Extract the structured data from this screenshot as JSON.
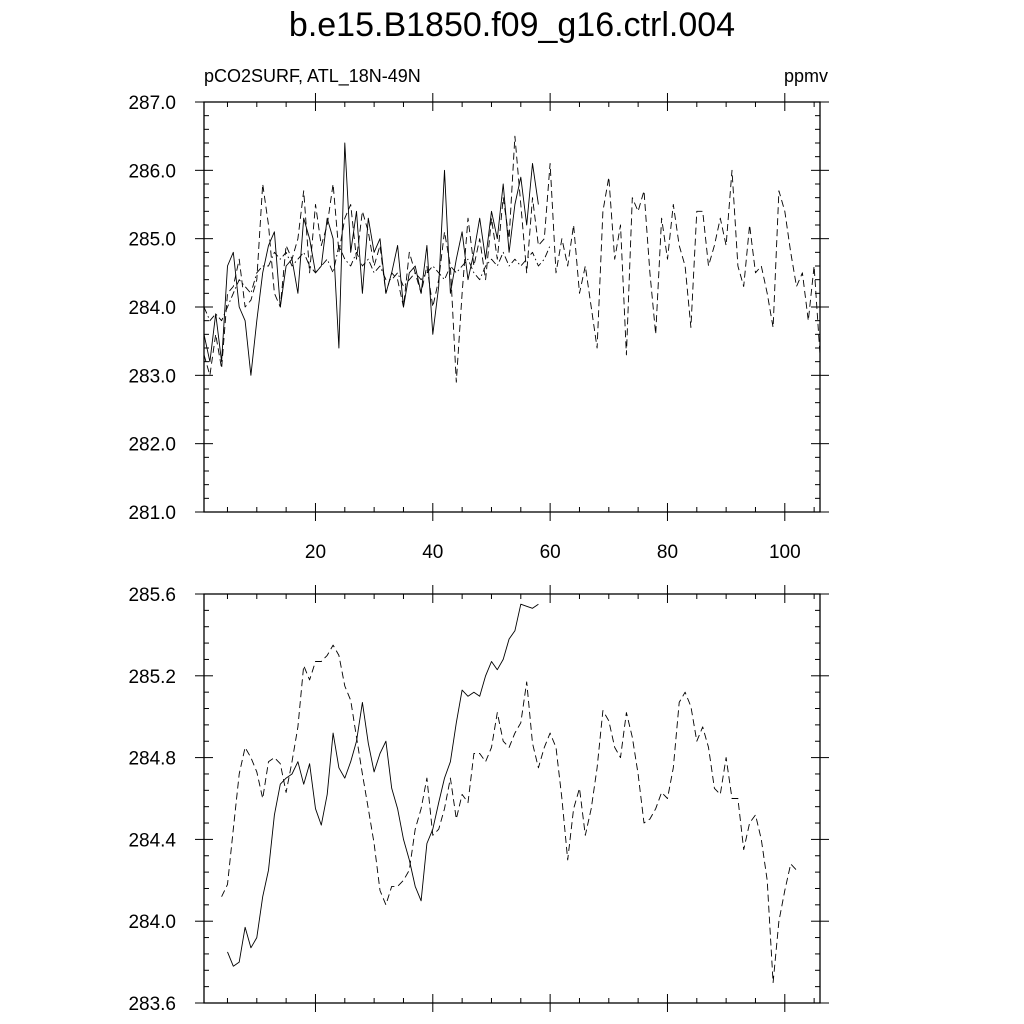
{
  "title": "b.e15.B1850.f09_g16.ctrl.004",
  "top_left_label": "pCO2SURF, ATL_18N-49N",
  "top_right_label": "ppmv",
  "chart_data": [
    {
      "type": "line",
      "panel": "top",
      "xlim": [
        1,
        106
      ],
      "ylim": [
        281.0,
        287.0
      ],
      "x_ticks": [
        20,
        40,
        60,
        80,
        100
      ],
      "y_ticks": [
        281.0,
        282.0,
        283.0,
        284.0,
        285.0,
        286.0,
        287.0
      ],
      "grid": false,
      "series": [
        {
          "style": "solid",
          "x": [
            1,
            2,
            3,
            4,
            5,
            6,
            7,
            8,
            9,
            10,
            11,
            12,
            13,
            14,
            15,
            16,
            17,
            18,
            19,
            20,
            21,
            22,
            23,
            24,
            25,
            26,
            27,
            28,
            29,
            30,
            31,
            32,
            33,
            34,
            35,
            36,
            37,
            38,
            39,
            40,
            41,
            42,
            43,
            44,
            45,
            46,
            47,
            48,
            49,
            50,
            51,
            52,
            53,
            54,
            55,
            56,
            57,
            58
          ],
          "y": [
            283.6,
            283.2,
            283.9,
            283.2,
            284.6,
            284.8,
            284.0,
            283.8,
            283.0,
            283.8,
            284.5,
            284.9,
            285.1,
            284.0,
            284.6,
            284.7,
            284.2,
            285.3,
            285.0,
            284.5,
            284.6,
            285.3,
            285.0,
            283.4,
            286.4,
            284.8,
            285.4,
            284.2,
            285.3,
            284.8,
            285.0,
            284.2,
            284.5,
            284.9,
            284.0,
            284.5,
            284.6,
            284.2,
            284.9,
            283.6,
            284.3,
            286.0,
            284.2,
            284.7,
            285.1,
            284.4,
            284.8,
            285.3,
            284.7,
            285.4,
            285.0,
            285.8,
            284.8,
            285.5,
            285.9,
            285.2,
            286.1,
            285.5
          ]
        },
        {
          "style": "dashed",
          "x": [
            1,
            2,
            3,
            4,
            5,
            6,
            7,
            8,
            9,
            10,
            11,
            12,
            13,
            14,
            15,
            16,
            17,
            18,
            19,
            20,
            21,
            22,
            23,
            24,
            25,
            26,
            27,
            28,
            29,
            30,
            31,
            32,
            33,
            34,
            35,
            36,
            37,
            38,
            39,
            40,
            41,
            42,
            43,
            44,
            45,
            46,
            47,
            48,
            49,
            50,
            51,
            52,
            53,
            54,
            55,
            56,
            57,
            58,
            59,
            60,
            61,
            62,
            63,
            64,
            65,
            66,
            67,
            68,
            69,
            70,
            71,
            72,
            73,
            74,
            75,
            76,
            77,
            78,
            79,
            80,
            81,
            82,
            83,
            84,
            85,
            86,
            87,
            88,
            89,
            90,
            91,
            92,
            93,
            94,
            95,
            96,
            97,
            98,
            99,
            100,
            101,
            102,
            103,
            104,
            105,
            106
          ],
          "y": [
            283.3,
            283.0,
            283.6,
            283.1,
            284.2,
            284.3,
            284.7,
            284.0,
            284.1,
            284.4,
            285.8,
            285.2,
            284.2,
            284.0,
            284.9,
            284.7,
            285.0,
            285.7,
            284.5,
            285.5,
            284.9,
            285.2,
            285.8,
            284.8,
            285.3,
            285.5,
            284.7,
            285.4,
            285.1,
            284.6,
            284.9,
            284.2,
            284.5,
            284.4,
            284.0,
            284.8,
            284.5,
            284.2,
            284.6,
            284.0,
            284.4,
            285.1,
            284.6,
            282.9,
            284.2,
            285.3,
            284.6,
            285.0,
            284.4,
            285.3,
            284.7,
            285.6,
            285.0,
            286.5,
            285.5,
            284.5,
            285.6,
            284.9,
            285.0,
            286.1,
            284.5,
            285.0,
            284.6,
            285.2,
            284.2,
            284.6,
            284.0,
            283.4,
            285.4,
            285.9,
            284.7,
            285.2,
            283.3,
            285.6,
            285.4,
            285.7,
            284.5,
            283.6,
            285.3,
            284.7,
            285.5,
            284.9,
            284.6,
            283.7,
            285.4,
            285.4,
            284.6,
            284.9,
            285.3,
            284.9,
            286.0,
            284.6,
            284.3,
            285.2,
            284.5,
            284.6,
            284.2,
            283.7,
            285.7,
            285.4,
            284.8,
            284.3,
            284.5,
            283.8,
            284.6,
            283.3
          ]
        },
        {
          "style": "dashdot",
          "x": [
            1,
            2,
            3,
            4,
            5,
            6,
            7,
            8,
            9,
            10,
            11,
            12,
            13,
            14,
            15,
            16,
            17,
            18,
            19,
            20,
            21,
            22,
            23,
            24,
            25,
            26,
            27,
            28,
            29,
            30,
            31,
            32,
            33,
            34,
            35,
            36,
            37,
            38,
            39,
            40,
            41,
            42,
            43,
            44,
            45,
            46,
            47,
            48,
            49,
            50,
            51,
            52,
            53,
            54,
            55,
            56,
            57,
            58,
            59,
            60
          ],
          "y": [
            284.0,
            283.8,
            283.9,
            283.8,
            284.0,
            284.2,
            284.4,
            284.3,
            284.2,
            284.5,
            284.6,
            284.6,
            284.8,
            284.7,
            284.8,
            284.6,
            284.7,
            284.8,
            284.6,
            284.5,
            284.6,
            284.7,
            284.5,
            284.9,
            284.7,
            284.6,
            284.8,
            284.6,
            284.7,
            284.5,
            284.6,
            284.4,
            284.4,
            284.5,
            284.3,
            284.4,
            284.5,
            284.4,
            284.5,
            284.6,
            284.5,
            284.4,
            284.6,
            284.5,
            284.6,
            284.7,
            284.5,
            284.4,
            284.6,
            284.7,
            284.6,
            284.8,
            284.6,
            284.7,
            284.6,
            284.7,
            284.8,
            284.6,
            284.7,
            284.9
          ]
        }
      ]
    },
    {
      "type": "line",
      "panel": "bottom",
      "xlim": [
        1,
        106
      ],
      "ylim": [
        283.6,
        285.6
      ],
      "y_ticks": [
        283.6,
        284.0,
        284.4,
        284.8,
        285.2,
        285.6
      ],
      "grid": false,
      "series": [
        {
          "style": "solid",
          "x": [
            5,
            6,
            7,
            8,
            9,
            10,
            11,
            12,
            13,
            14,
            15,
            16,
            17,
            18,
            19,
            20,
            21,
            22,
            23,
            24,
            25,
            26,
            27,
            28,
            29,
            30,
            31,
            32,
            33,
            34,
            35,
            36,
            37,
            38,
            39,
            40,
            41,
            42,
            43,
            44,
            45,
            46,
            47,
            48,
            49,
            50,
            51,
            52,
            53,
            54,
            55,
            56,
            57,
            58
          ],
          "y": [
            283.85,
            283.78,
            283.8,
            283.97,
            283.87,
            283.92,
            284.12,
            284.25,
            284.52,
            284.67,
            284.7,
            284.72,
            284.78,
            284.67,
            284.77,
            284.55,
            284.47,
            284.62,
            284.92,
            284.75,
            284.7,
            284.78,
            284.88,
            285.07,
            284.87,
            284.73,
            284.82,
            284.88,
            284.65,
            284.55,
            284.4,
            284.3,
            284.17,
            284.1,
            284.38,
            284.45,
            284.58,
            284.7,
            284.78,
            284.97,
            285.13,
            285.1,
            285.12,
            285.1,
            285.2,
            285.27,
            285.23,
            285.28,
            285.38,
            285.42,
            285.55,
            285.54,
            285.53,
            285.55
          ]
        },
        {
          "style": "dashed",
          "x": [
            4,
            5,
            6,
            7,
            8,
            9,
            10,
            11,
            12,
            13,
            14,
            15,
            16,
            17,
            18,
            19,
            20,
            21,
            22,
            23,
            24,
            25,
            26,
            27,
            28,
            29,
            30,
            31,
            32,
            33,
            34,
            35,
            36,
            37,
            38,
            39,
            40,
            41,
            42,
            43,
            44,
            45,
            46,
            47,
            48,
            49,
            50,
            51,
            52,
            53,
            54,
            55,
            56,
            57,
            58,
            59,
            60,
            61,
            62,
            63,
            64,
            65,
            66,
            67,
            68,
            69,
            70,
            71,
            72,
            73,
            74,
            75,
            76,
            77,
            78,
            79,
            80,
            81,
            82,
            83,
            84,
            85,
            86,
            87,
            88,
            89,
            90,
            91,
            92,
            93,
            94,
            95,
            96,
            97,
            98,
            99,
            100,
            101,
            102
          ],
          "y": [
            284.12,
            284.18,
            284.45,
            284.72,
            284.85,
            284.8,
            284.73,
            284.6,
            284.78,
            284.8,
            284.77,
            284.63,
            284.78,
            284.95,
            285.25,
            285.18,
            285.27,
            285.27,
            285.3,
            285.35,
            285.3,
            285.15,
            285.08,
            284.9,
            284.72,
            284.55,
            284.38,
            284.15,
            284.08,
            284.17,
            284.17,
            284.2,
            284.25,
            284.45,
            284.55,
            284.7,
            284.42,
            284.45,
            284.55,
            284.7,
            284.5,
            284.62,
            284.58,
            284.82,
            284.82,
            284.78,
            284.85,
            285.02,
            284.88,
            284.85,
            284.92,
            284.97,
            285.17,
            284.87,
            284.75,
            284.85,
            284.92,
            284.85,
            284.6,
            284.3,
            284.55,
            284.65,
            284.42,
            284.55,
            284.75,
            285.03,
            284.98,
            284.85,
            284.8,
            285.02,
            284.9,
            284.72,
            284.48,
            284.5,
            284.55,
            284.63,
            284.6,
            284.75,
            285.07,
            285.12,
            285.05,
            284.88,
            284.95,
            284.85,
            284.65,
            284.62,
            284.8,
            284.6,
            284.6,
            284.35,
            284.48,
            284.52,
            284.4,
            284.2,
            283.7,
            284.0,
            284.15,
            284.28,
            284.25
          ]
        }
      ]
    }
  ]
}
